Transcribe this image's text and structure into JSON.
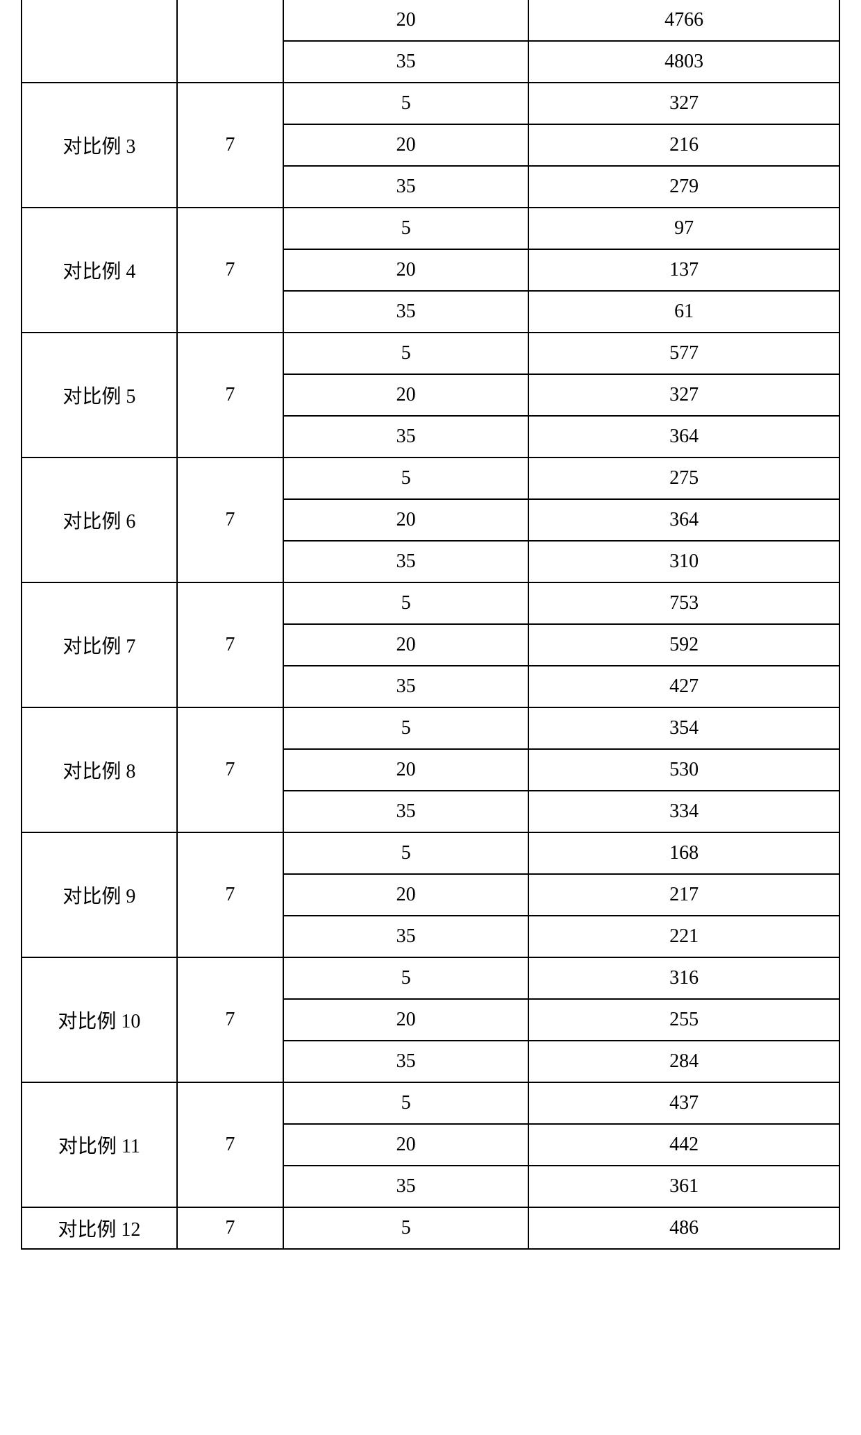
{
  "table": {
    "border_color": "#000000",
    "background_color": "#ffffff",
    "text_color": "#000000",
    "font_size_pt": 14,
    "column_widths_pct": [
      19,
      13,
      30,
      38
    ],
    "groups": [
      {
        "label": "",
        "col2": "",
        "rows": [
          {
            "c3": "20",
            "c4": "4766"
          },
          {
            "c3": "35",
            "c4": "4803"
          }
        ]
      },
      {
        "label": "对比例 3",
        "col2": "7",
        "rows": [
          {
            "c3": "5",
            "c4": "327"
          },
          {
            "c3": "20",
            "c4": "216"
          },
          {
            "c3": "35",
            "c4": "279"
          }
        ]
      },
      {
        "label": "对比例 4",
        "col2": "7",
        "rows": [
          {
            "c3": "5",
            "c4": "97"
          },
          {
            "c3": "20",
            "c4": "137"
          },
          {
            "c3": "35",
            "c4": "61"
          }
        ]
      },
      {
        "label": "对比例 5",
        "col2": "7",
        "rows": [
          {
            "c3": "5",
            "c4": "577"
          },
          {
            "c3": "20",
            "c4": "327"
          },
          {
            "c3": "35",
            "c4": "364"
          }
        ]
      },
      {
        "label": "对比例 6",
        "col2": "7",
        "rows": [
          {
            "c3": "5",
            "c4": "275"
          },
          {
            "c3": "20",
            "c4": "364"
          },
          {
            "c3": "35",
            "c4": "310"
          }
        ]
      },
      {
        "label": "对比例 7",
        "col2": "7",
        "rows": [
          {
            "c3": "5",
            "c4": "753"
          },
          {
            "c3": "20",
            "c4": "592"
          },
          {
            "c3": "35",
            "c4": "427"
          }
        ]
      },
      {
        "label": "对比例 8",
        "col2": "7",
        "rows": [
          {
            "c3": "5",
            "c4": "354"
          },
          {
            "c3": "20",
            "c4": "530"
          },
          {
            "c3": "35",
            "c4": "334"
          }
        ]
      },
      {
        "label": "对比例 9",
        "col2": "7",
        "rows": [
          {
            "c3": "5",
            "c4": "168"
          },
          {
            "c3": "20",
            "c4": "217"
          },
          {
            "c3": "35",
            "c4": "221"
          }
        ]
      },
      {
        "label": "对比例 10",
        "col2": "7",
        "rows": [
          {
            "c3": "5",
            "c4": "316"
          },
          {
            "c3": "20",
            "c4": "255"
          },
          {
            "c3": "35",
            "c4": "284"
          }
        ]
      },
      {
        "label": "对比例 11",
        "col2": "7",
        "rows": [
          {
            "c3": "5",
            "c4": "437"
          },
          {
            "c3": "20",
            "c4": "442"
          },
          {
            "c3": "35",
            "c4": "361"
          }
        ]
      },
      {
        "label": "对比例 12",
        "col2": "7",
        "rows": [
          {
            "c3": "5",
            "c4": "486"
          }
        ]
      }
    ]
  }
}
